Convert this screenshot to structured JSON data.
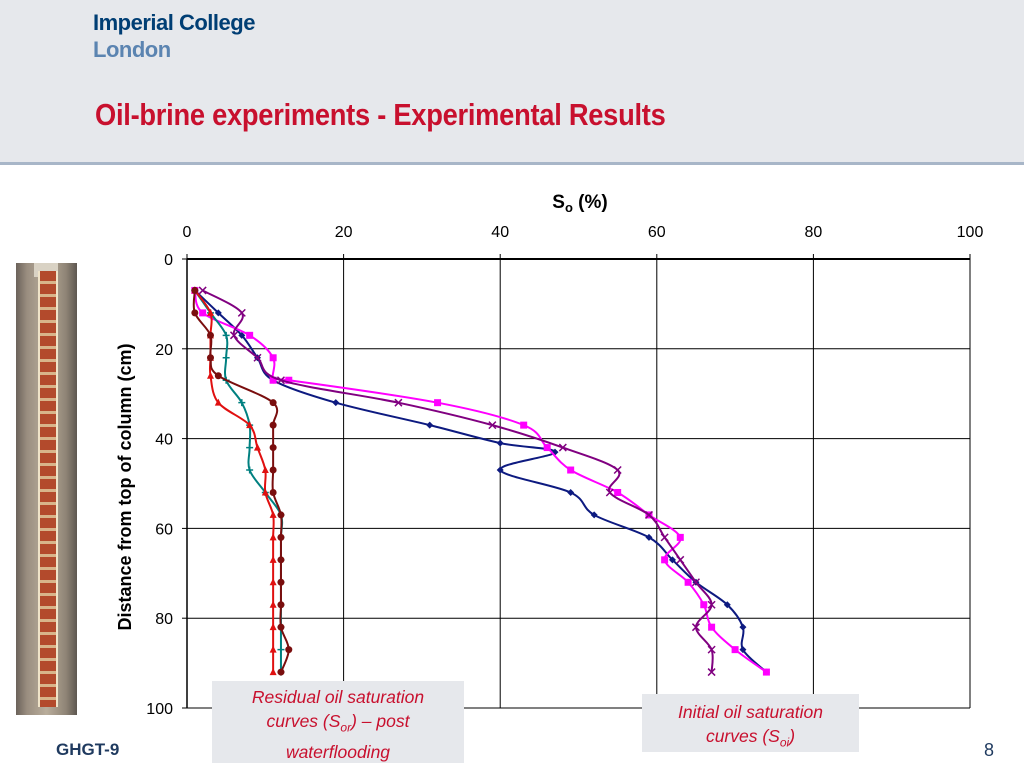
{
  "header": {
    "logo_line1": "Imperial College",
    "logo_line2": "London",
    "title": "Oil-brine experiments - Experimental Results"
  },
  "footer": {
    "left": "GHGT-9",
    "page_number": "8"
  },
  "callouts": {
    "left": {
      "line1": "Residual oil saturation",
      "line2_pre": "curves (S",
      "line2_sub": "or",
      "line2_post": ") – post",
      "line3": "waterflooding"
    },
    "right": {
      "line1": "Initial oil saturation",
      "line2_pre": "curves (S",
      "line2_sub": "oi",
      "line2_post": ")"
    }
  },
  "chart_data": {
    "type": "line",
    "title": "",
    "xlabel_main": "S",
    "xlabel_sub": "o",
    "xlabel_unit": " (%)",
    "ylabel": "Distance from top of column (cm)",
    "xlim": [
      0,
      100
    ],
    "ylim": [
      0,
      100
    ],
    "y_inverted": true,
    "x_axis_position": "top",
    "x_ticks": [
      0,
      20,
      40,
      60,
      80,
      100
    ],
    "y_ticks": [
      0,
      20,
      40,
      60,
      80,
      100
    ],
    "grid": true,
    "series": [
      {
        "color": "#0d1a80",
        "marker": "diamond",
        "points": [
          [
            1,
            7
          ],
          [
            4,
            12
          ],
          [
            7,
            17
          ],
          [
            9,
            22
          ],
          [
            11,
            27
          ],
          [
            19,
            32
          ],
          [
            31,
            37
          ],
          [
            40,
            41
          ],
          [
            47,
            43
          ],
          [
            40,
            47
          ],
          [
            49,
            52
          ],
          [
            52,
            57
          ],
          [
            59,
            62
          ],
          [
            62,
            67
          ],
          [
            65,
            72
          ],
          [
            69,
            77
          ],
          [
            71,
            82
          ],
          [
            71,
            87
          ],
          [
            74,
            92
          ]
        ]
      },
      {
        "color": "#ff00ff",
        "marker": "square",
        "points": [
          [
            1,
            7
          ],
          [
            2,
            12
          ],
          [
            8,
            17
          ],
          [
            11,
            22
          ],
          [
            11,
            27
          ],
          [
            13,
            27
          ],
          [
            32,
            32
          ],
          [
            43,
            37
          ],
          [
            46,
            42
          ],
          [
            49,
            47
          ],
          [
            55,
            52
          ],
          [
            59,
            57
          ],
          [
            63,
            62
          ],
          [
            61,
            67
          ],
          [
            64,
            72
          ],
          [
            66,
            77
          ],
          [
            67,
            82
          ],
          [
            70,
            87
          ],
          [
            74,
            92
          ]
        ]
      },
      {
        "color": "#800080",
        "marker": "x",
        "points": [
          [
            2,
            7
          ],
          [
            7,
            12
          ],
          [
            6,
            17
          ],
          [
            9,
            22
          ],
          [
            12,
            27
          ],
          [
            27,
            32
          ],
          [
            39,
            37
          ],
          [
            48,
            42
          ],
          [
            55,
            47
          ],
          [
            54,
            52
          ],
          [
            59,
            57
          ],
          [
            61,
            62
          ],
          [
            63,
            67
          ],
          [
            65,
            72
          ],
          [
            67,
            77
          ],
          [
            65,
            82
          ],
          [
            67,
            87
          ],
          [
            67,
            92
          ]
        ]
      },
      {
        "color": "#008080",
        "marker": "plus",
        "points": [
          [
            1,
            7
          ],
          [
            3,
            12
          ],
          [
            5,
            17
          ],
          [
            5,
            22
          ],
          [
            5,
            27
          ],
          [
            7,
            32
          ],
          [
            8,
            37
          ],
          [
            8,
            42
          ],
          [
            8,
            47
          ],
          [
            10,
            52
          ],
          [
            12,
            57
          ],
          [
            12,
            62
          ],
          [
            12,
            67
          ],
          [
            12,
            72
          ],
          [
            12,
            77
          ],
          [
            12,
            82
          ],
          [
            12,
            87
          ],
          [
            12,
            92
          ]
        ]
      },
      {
        "color": "#e01010",
        "marker": "triangle",
        "points": [
          [
            1,
            7
          ],
          [
            3,
            12
          ],
          [
            3,
            17
          ],
          [
            3,
            22
          ],
          [
            3,
            26
          ],
          [
            4,
            32
          ],
          [
            8,
            37
          ],
          [
            9,
            42
          ],
          [
            10,
            47
          ],
          [
            10,
            52
          ],
          [
            11,
            57
          ],
          [
            11,
            62
          ],
          [
            11,
            67
          ],
          [
            11,
            72
          ],
          [
            11,
            77
          ],
          [
            11,
            82
          ],
          [
            11,
            87
          ],
          [
            11,
            92
          ]
        ]
      },
      {
        "color": "#7a0e0e",
        "marker": "circle",
        "points": [
          [
            1,
            7
          ],
          [
            1,
            12
          ],
          [
            3,
            17
          ],
          [
            3,
            22
          ],
          [
            4,
            26
          ],
          [
            11,
            32
          ],
          [
            11,
            37
          ],
          [
            11,
            42
          ],
          [
            11,
            47
          ],
          [
            11,
            52
          ],
          [
            12,
            57
          ],
          [
            12,
            62
          ],
          [
            12,
            67
          ],
          [
            12,
            72
          ],
          [
            12,
            77
          ],
          [
            12,
            82
          ],
          [
            13,
            87
          ],
          [
            12,
            92
          ]
        ]
      }
    ]
  }
}
